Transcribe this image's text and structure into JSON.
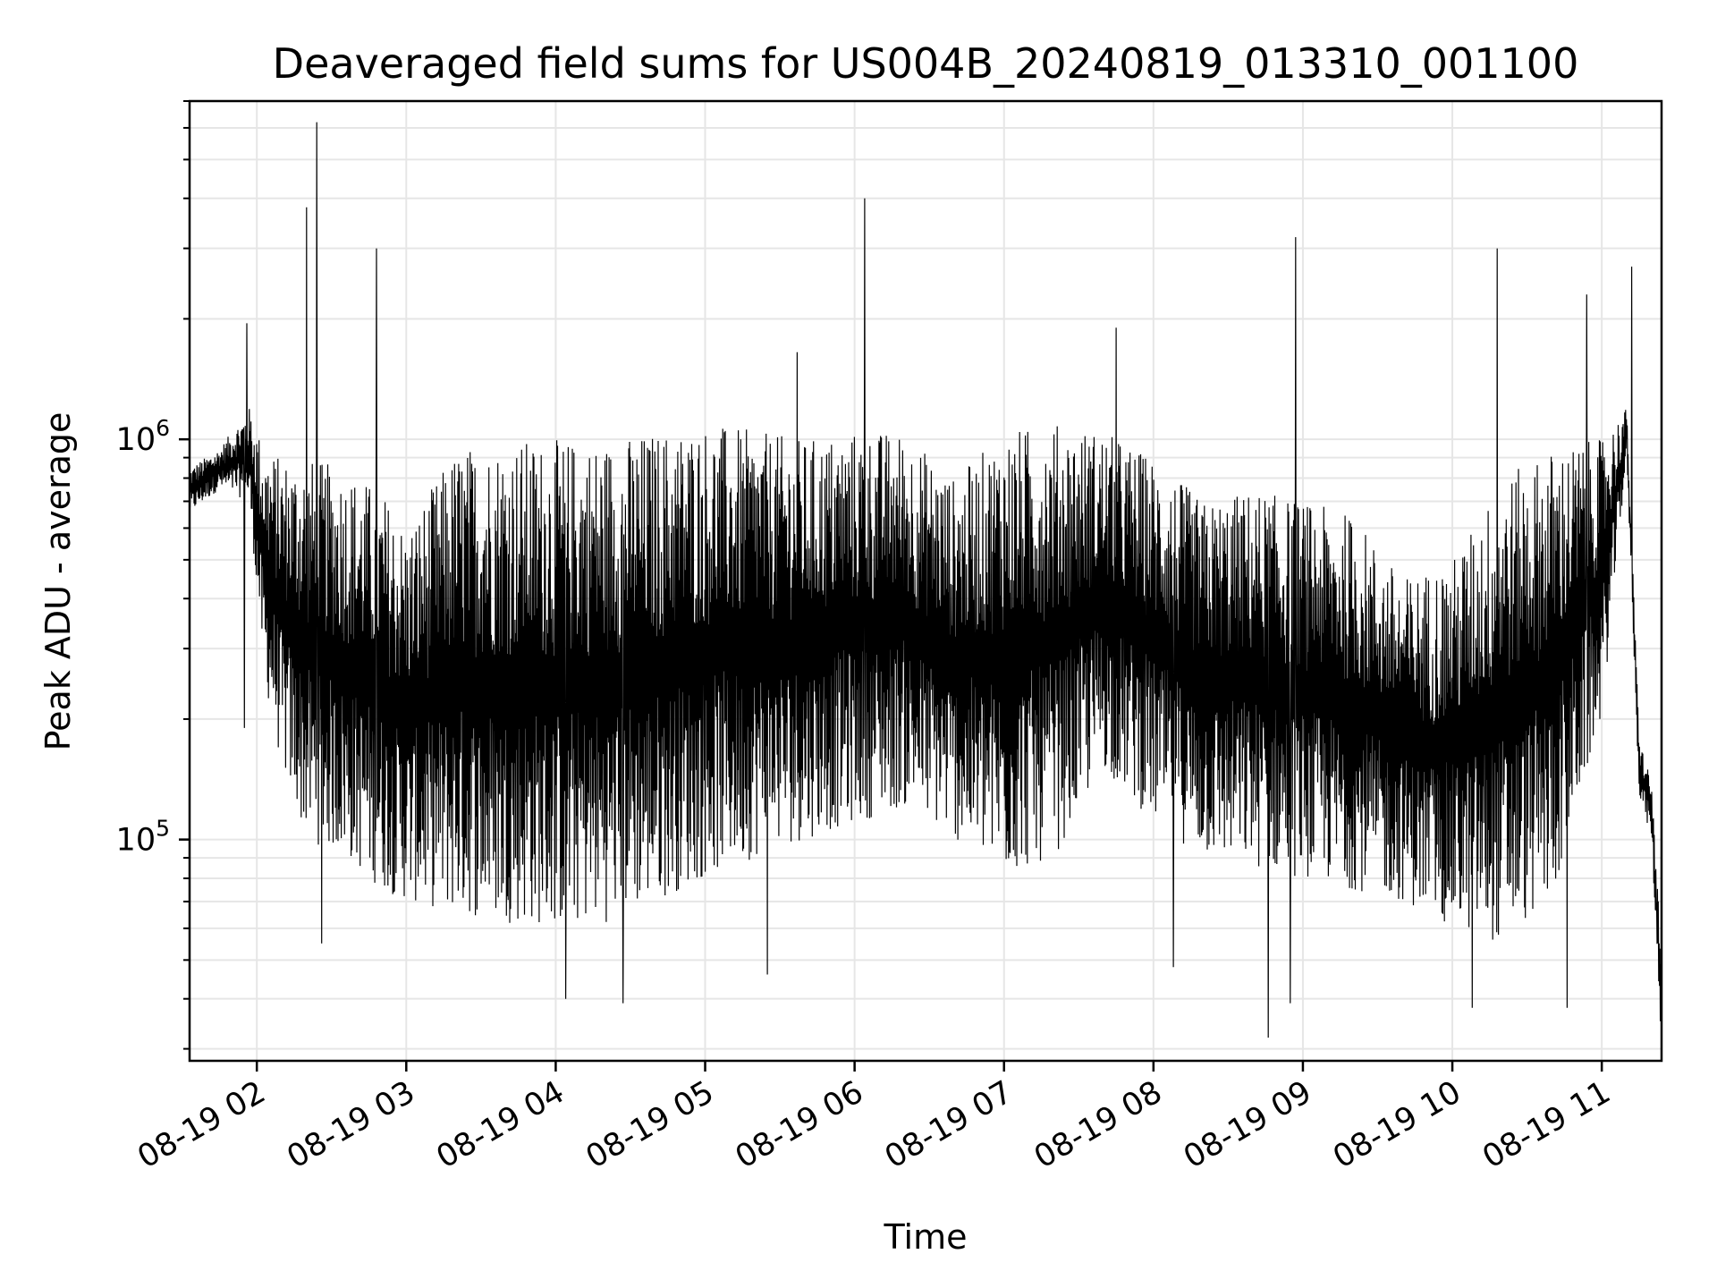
{
  "chart_data": {
    "type": "line",
    "title": "Deaveraged field sums for US004B_20240819_013310_001100",
    "xlabel": "Time",
    "ylabel": "Peak ADU - average",
    "yscale": "log",
    "ylim": [
      28000,
      7000000
    ],
    "xlim": [
      "2024-08-19 01:33",
      "2024-08-19 11:24"
    ],
    "grid": true,
    "line_color": "#000000",
    "x_ticks": [
      {
        "value": "2024-08-19 02:00",
        "label": "08-19 02"
      },
      {
        "value": "2024-08-19 03:00",
        "label": "08-19 03"
      },
      {
        "value": "2024-08-19 04:00",
        "label": "08-19 04"
      },
      {
        "value": "2024-08-19 05:00",
        "label": "08-19 05"
      },
      {
        "value": "2024-08-19 06:00",
        "label": "08-19 06"
      },
      {
        "value": "2024-08-19 07:00",
        "label": "08-19 07"
      },
      {
        "value": "2024-08-19 08:00",
        "label": "08-19 08"
      },
      {
        "value": "2024-08-19 09:00",
        "label": "08-19 09"
      },
      {
        "value": "2024-08-19 10:00",
        "label": "08-19 10"
      },
      {
        "value": "2024-08-19 11:00",
        "label": "08-19 11"
      }
    ],
    "y_ticks": [
      {
        "value": 100000,
        "base": "10",
        "exp": "5"
      },
      {
        "value": 1000000,
        "base": "10",
        "exp": "6"
      }
    ],
    "envelope": {
      "x": [
        "2024-08-19 01:33",
        "2024-08-19 01:45",
        "2024-08-19 01:57",
        "2024-08-19 02:03",
        "2024-08-19 02:10",
        "2024-08-19 02:20",
        "2024-08-19 02:35",
        "2024-08-19 02:50",
        "2024-08-19 03:00",
        "2024-08-19 03:20",
        "2024-08-19 03:40",
        "2024-08-19 04:00",
        "2024-08-19 04:20",
        "2024-08-19 04:40",
        "2024-08-19 05:00",
        "2024-08-19 05:20",
        "2024-08-19 05:40",
        "2024-08-19 06:00",
        "2024-08-19 06:20",
        "2024-08-19 06:40",
        "2024-08-19 07:00",
        "2024-08-19 07:20",
        "2024-08-19 07:40",
        "2024-08-19 08:00",
        "2024-08-19 08:20",
        "2024-08-19 08:40",
        "2024-08-19 09:00",
        "2024-08-19 09:20",
        "2024-08-19 09:40",
        "2024-08-19 10:00",
        "2024-08-19 10:20",
        "2024-08-19 10:40",
        "2024-08-19 11:00",
        "2024-08-19 11:10",
        "2024-08-19 11:15",
        "2024-08-19 11:20",
        "2024-08-19 11:24"
      ],
      "high": [
        850000,
        950000,
        1200000,
        950000,
        900000,
        900000,
        850000,
        750000,
        600000,
        950000,
        1000000,
        1000000,
        1000000,
        1050000,
        1100000,
        1050000,
        1000000,
        1050000,
        1050000,
        800000,
        1050000,
        1100000,
        1050000,
        900000,
        700000,
        750000,
        700000,
        650000,
        450000,
        500000,
        800000,
        950000,
        1000000,
        1200000,
        180000,
        140000,
        50000
      ],
      "low": [
        650000,
        750000,
        700000,
        250000,
        150000,
        100000,
        90000,
        75000,
        70000,
        65000,
        62000,
        60000,
        62000,
        70000,
        80000,
        90000,
        100000,
        110000,
        120000,
        100000,
        80000,
        90000,
        150000,
        110000,
        90000,
        85000,
        80000,
        75000,
        70000,
        60000,
        55000,
        70000,
        200000,
        900000,
        130000,
        100000,
        30000
      ]
    },
    "spikes": [
      {
        "x": "2024-08-19 01:56",
        "y": 1950000
      },
      {
        "x": "2024-08-19 02:20",
        "y": 3800000
      },
      {
        "x": "2024-08-19 02:24",
        "y": 6200000
      },
      {
        "x": "2024-08-19 02:48",
        "y": 3000000
      },
      {
        "x": "2024-08-19 05:37",
        "y": 1650000
      },
      {
        "x": "2024-08-19 06:04",
        "y": 4000000
      },
      {
        "x": "2024-08-19 07:45",
        "y": 1900000
      },
      {
        "x": "2024-08-19 08:57",
        "y": 3200000
      },
      {
        "x": "2024-08-19 10:18",
        "y": 3000000
      },
      {
        "x": "2024-08-19 10:54",
        "y": 2300000
      },
      {
        "x": "2024-08-19 11:12",
        "y": 2700000
      }
    ],
    "dips": [
      {
        "x": "2024-08-19 01:55",
        "y": 190000
      },
      {
        "x": "2024-08-19 02:26",
        "y": 55000
      },
      {
        "x": "2024-08-19 04:04",
        "y": 40000
      },
      {
        "x": "2024-08-19 04:27",
        "y": 39000
      },
      {
        "x": "2024-08-19 05:25",
        "y": 46000
      },
      {
        "x": "2024-08-19 08:08",
        "y": 48000
      },
      {
        "x": "2024-08-19 08:46",
        "y": 32000
      },
      {
        "x": "2024-08-19 08:55",
        "y": 39000
      },
      {
        "x": "2024-08-19 10:08",
        "y": 38000
      },
      {
        "x": "2024-08-19 10:46",
        "y": 38000
      }
    ]
  }
}
